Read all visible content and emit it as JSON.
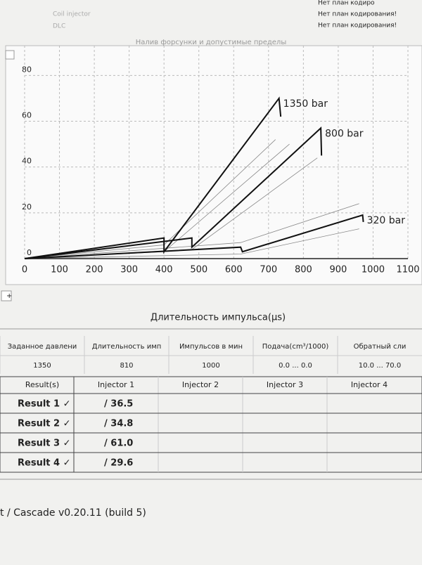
{
  "header": {
    "labels": [
      "Coil injector",
      "DLC"
    ],
    "codes": [
      "Нет план кодиро",
      "Нет план кодирования!",
      "Нет план кодирования!"
    ]
  },
  "chart_data": {
    "type": "line",
    "title": "Налив форсунки и допустимые пределы",
    "x_label": "Длительность импульса(µs)",
    "xlim": [
      0,
      1100
    ],
    "xticks": [
      0,
      100,
      200,
      300,
      400,
      500,
      600,
      700,
      800,
      900,
      1000,
      1100
    ],
    "ylim": [
      0,
      93
    ],
    "yticks": [
      0,
      20,
      40,
      60,
      80
    ],
    "grid": true,
    "series": [
      {
        "name": "1350 bar",
        "color": "#111111",
        "x": [
          0,
          400,
          400,
          730,
          735
        ],
        "values": [
          0,
          9,
          3,
          70,
          62
        ]
      },
      {
        "name": "800 bar",
        "color": "#111111",
        "x": [
          0,
          480,
          480,
          850,
          852
        ],
        "values": [
          0,
          9,
          5,
          57,
          45
        ]
      },
      {
        "name": "320 bar",
        "color": "#111111",
        "x": [
          0,
          620,
          625,
          970,
          972
        ],
        "values": [
          0,
          5,
          3,
          19,
          16
        ]
      }
    ],
    "limits": [
      {
        "color": "#888888",
        "x": [
          0,
          400,
          720
        ],
        "values": [
          0,
          6,
          52
        ]
      },
      {
        "color": "#888888",
        "x": [
          0,
          400,
          760
        ],
        "values": [
          0,
          3,
          50
        ]
      },
      {
        "color": "#888888",
        "x": [
          0,
          480,
          840
        ],
        "values": [
          0,
          4,
          44
        ]
      },
      {
        "color": "#888888",
        "x": [
          0,
          620,
          960
        ],
        "values": [
          0,
          7,
          24
        ]
      },
      {
        "color": "#888888",
        "x": [
          0,
          620,
          960
        ],
        "values": [
          0,
          2,
          13
        ]
      }
    ]
  },
  "settings": {
    "columns": [
      "Заданное давлени",
      "Длительность имп",
      "Импульсов в мин",
      "Подача(cm³/1000)",
      "Обратный сли"
    ],
    "row": [
      "1350",
      "810",
      "1000",
      "0.0 ... 0.0",
      "10.0 ... 70.0"
    ]
  },
  "results": {
    "columns": [
      "Result(s)",
      "Injector 1",
      "Injector 2",
      "Injector 3",
      "Injector 4"
    ],
    "rows": [
      [
        "Result 1 ✓",
        "/ 36.5"
      ],
      [
        "Result 2 ✓",
        "/ 34.8"
      ],
      [
        "Result 3 ✓",
        "/ 61.0"
      ],
      [
        "Result 4 ✓",
        "/ 29.6"
      ]
    ]
  },
  "footer": "t / Cascade v0.20.11 (build 5)"
}
